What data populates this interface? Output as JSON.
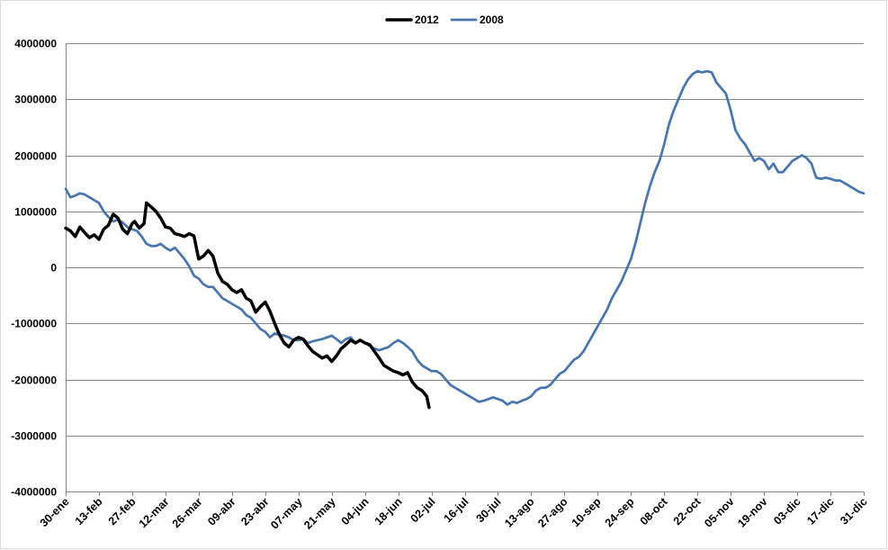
{
  "chart_data": {
    "type": "line",
    "title": "",
    "xlabel": "",
    "ylabel": "",
    "ylim": [
      -4000000,
      4000000
    ],
    "y_ticks": [
      "4000000",
      "3000000",
      "2000000",
      "1000000",
      "0",
      "-1000000",
      "-2000000",
      "-3000000",
      "-4000000"
    ],
    "x_range": [
      "30-ene",
      "31-dic"
    ],
    "x_ticks": [
      "30-ene",
      "13-feb",
      "27-feb",
      "12-mar",
      "26-mar",
      "09-abr",
      "23-abr",
      "07-may",
      "21-may",
      "04-jun",
      "18-jun",
      "02-jul",
      "16-jul",
      "30-jul",
      "13-ago",
      "27-ago",
      "10-sep",
      "24-sep",
      "08-oct",
      "22-oct",
      "05-nov",
      "19-nov",
      "03-dic",
      "17-dic",
      "31-dic"
    ],
    "grid": "horizontal",
    "legend": "top",
    "series": [
      {
        "name": "2012",
        "color": "#000000",
        "points": [
          [
            "30-ene",
            700000
          ],
          [
            "01-feb",
            650000
          ],
          [
            "03-feb",
            550000
          ],
          [
            "05-feb",
            720000
          ],
          [
            "07-feb",
            620000
          ],
          [
            "09-feb",
            530000
          ],
          [
            "11-feb",
            580000
          ],
          [
            "13-feb",
            500000
          ],
          [
            "15-feb",
            680000
          ],
          [
            "17-feb",
            750000
          ],
          [
            "19-feb",
            950000
          ],
          [
            "21-feb",
            880000
          ],
          [
            "23-feb",
            680000
          ],
          [
            "25-feb",
            600000
          ],
          [
            "27-feb",
            780000
          ],
          [
            "28-feb",
            820000
          ],
          [
            "01-mar",
            700000
          ],
          [
            "03-mar",
            780000
          ],
          [
            "04-mar",
            1150000
          ],
          [
            "06-mar",
            1080000
          ],
          [
            "08-mar",
            1000000
          ],
          [
            "10-mar",
            880000
          ],
          [
            "12-mar",
            720000
          ],
          [
            "14-mar",
            700000
          ],
          [
            "16-mar",
            600000
          ],
          [
            "18-mar",
            580000
          ],
          [
            "20-mar",
            550000
          ],
          [
            "22-mar",
            600000
          ],
          [
            "24-mar",
            560000
          ],
          [
            "26-mar",
            150000
          ],
          [
            "28-mar",
            200000
          ],
          [
            "30-mar",
            300000
          ],
          [
            "01-abr",
            200000
          ],
          [
            "03-abr",
            -100000
          ],
          [
            "05-abr",
            -250000
          ],
          [
            "07-abr",
            -300000
          ],
          [
            "09-abr",
            -400000
          ],
          [
            "11-abr",
            -450000
          ],
          [
            "13-abr",
            -400000
          ],
          [
            "15-abr",
            -550000
          ],
          [
            "17-abr",
            -600000
          ],
          [
            "19-abr",
            -800000
          ],
          [
            "21-abr",
            -700000
          ],
          [
            "23-abr",
            -620000
          ],
          [
            "25-abr",
            -780000
          ],
          [
            "27-abr",
            -1000000
          ],
          [
            "29-abr",
            -1200000
          ],
          [
            "01-may",
            -1350000
          ],
          [
            "03-may",
            -1420000
          ],
          [
            "05-may",
            -1300000
          ],
          [
            "07-may",
            -1250000
          ],
          [
            "09-may",
            -1280000
          ],
          [
            "11-may",
            -1400000
          ],
          [
            "13-may",
            -1500000
          ],
          [
            "15-may",
            -1560000
          ],
          [
            "17-may",
            -1620000
          ],
          [
            "19-may",
            -1580000
          ],
          [
            "21-may",
            -1680000
          ],
          [
            "23-may",
            -1580000
          ],
          [
            "25-may",
            -1450000
          ],
          [
            "27-may",
            -1380000
          ],
          [
            "29-may",
            -1300000
          ],
          [
            "31-may",
            -1350000
          ],
          [
            "02-jun",
            -1300000
          ],
          [
            "04-jun",
            -1350000
          ],
          [
            "06-jun",
            -1380000
          ],
          [
            "08-jun",
            -1500000
          ],
          [
            "10-jun",
            -1620000
          ],
          [
            "12-jun",
            -1750000
          ],
          [
            "14-jun",
            -1800000
          ],
          [
            "16-jun",
            -1850000
          ],
          [
            "18-jun",
            -1880000
          ],
          [
            "20-jun",
            -1920000
          ],
          [
            "22-jun",
            -1880000
          ],
          [
            "24-jun",
            -2050000
          ],
          [
            "26-jun",
            -2150000
          ],
          [
            "28-jun",
            -2200000
          ],
          [
            "30-jun",
            -2300000
          ],
          [
            "01-jul",
            -2500000
          ]
        ]
      },
      {
        "name": "2008",
        "color": "#4a76ae",
        "points": [
          [
            "30-ene",
            1400000
          ],
          [
            "01-feb",
            1250000
          ],
          [
            "03-feb",
            1280000
          ],
          [
            "05-feb",
            1320000
          ],
          [
            "07-feb",
            1300000
          ],
          [
            "09-feb",
            1250000
          ],
          [
            "11-feb",
            1200000
          ],
          [
            "13-feb",
            1150000
          ],
          [
            "15-feb",
            1000000
          ],
          [
            "17-feb",
            900000
          ],
          [
            "19-feb",
            820000
          ],
          [
            "21-feb",
            850000
          ],
          [
            "23-feb",
            800000
          ],
          [
            "25-feb",
            720000
          ],
          [
            "27-feb",
            680000
          ],
          [
            "29-feb",
            650000
          ],
          [
            "02-mar",
            550000
          ],
          [
            "04-mar",
            420000
          ],
          [
            "06-mar",
            380000
          ],
          [
            "08-mar",
            380000
          ],
          [
            "10-mar",
            420000
          ],
          [
            "12-mar",
            350000
          ],
          [
            "14-mar",
            300000
          ],
          [
            "16-mar",
            350000
          ],
          [
            "18-mar",
            250000
          ],
          [
            "20-mar",
            150000
          ],
          [
            "22-mar",
            20000
          ],
          [
            "24-mar",
            -150000
          ],
          [
            "26-mar",
            -200000
          ],
          [
            "28-mar",
            -300000
          ],
          [
            "30-mar",
            -350000
          ],
          [
            "01-abr",
            -350000
          ],
          [
            "03-abr",
            -450000
          ],
          [
            "05-abr",
            -550000
          ],
          [
            "07-abr",
            -600000
          ],
          [
            "09-abr",
            -650000
          ],
          [
            "11-abr",
            -700000
          ],
          [
            "13-abr",
            -750000
          ],
          [
            "15-abr",
            -850000
          ],
          [
            "17-abr",
            -900000
          ],
          [
            "19-abr",
            -1000000
          ],
          [
            "21-abr",
            -1100000
          ],
          [
            "23-abr",
            -1150000
          ],
          [
            "25-abr",
            -1250000
          ],
          [
            "27-abr",
            -1180000
          ],
          [
            "29-abr",
            -1200000
          ],
          [
            "01-may",
            -1220000
          ],
          [
            "03-may",
            -1250000
          ],
          [
            "05-may",
            -1300000
          ],
          [
            "07-may",
            -1300000
          ],
          [
            "09-may",
            -1280000
          ],
          [
            "11-may",
            -1350000
          ],
          [
            "13-may",
            -1320000
          ],
          [
            "15-may",
            -1300000
          ],
          [
            "17-may",
            -1280000
          ],
          [
            "19-may",
            -1250000
          ],
          [
            "21-may",
            -1220000
          ],
          [
            "23-may",
            -1280000
          ],
          [
            "25-may",
            -1350000
          ],
          [
            "27-may",
            -1280000
          ],
          [
            "29-may",
            -1250000
          ],
          [
            "31-may",
            -1350000
          ],
          [
            "02-jun",
            -1300000
          ],
          [
            "04-jun",
            -1350000
          ],
          [
            "06-jun",
            -1400000
          ],
          [
            "08-jun",
            -1450000
          ],
          [
            "10-jun",
            -1480000
          ],
          [
            "12-jun",
            -1450000
          ],
          [
            "14-jun",
            -1420000
          ],
          [
            "16-jun",
            -1350000
          ],
          [
            "18-jun",
            -1300000
          ],
          [
            "20-jun",
            -1350000
          ],
          [
            "22-jun",
            -1420000
          ],
          [
            "24-jun",
            -1500000
          ],
          [
            "26-jun",
            -1650000
          ],
          [
            "28-jun",
            -1750000
          ],
          [
            "30-jun",
            -1800000
          ],
          [
            "02-jul",
            -1850000
          ],
          [
            "04-jul",
            -1850000
          ],
          [
            "06-jul",
            -1900000
          ],
          [
            "08-jul",
            -2000000
          ],
          [
            "10-jul",
            -2100000
          ],
          [
            "12-jul",
            -2150000
          ],
          [
            "14-jul",
            -2200000
          ],
          [
            "16-jul",
            -2250000
          ],
          [
            "18-jul",
            -2300000
          ],
          [
            "20-jul",
            -2350000
          ],
          [
            "22-jul",
            -2400000
          ],
          [
            "24-jul",
            -2380000
          ],
          [
            "26-jul",
            -2350000
          ],
          [
            "28-jul",
            -2320000
          ],
          [
            "30-jul",
            -2350000
          ],
          [
            "01-ago",
            -2380000
          ],
          [
            "03-ago",
            -2450000
          ],
          [
            "05-ago",
            -2400000
          ],
          [
            "07-ago",
            -2420000
          ],
          [
            "09-ago",
            -2380000
          ],
          [
            "11-ago",
            -2350000
          ],
          [
            "13-ago",
            -2300000
          ],
          [
            "15-ago",
            -2200000
          ],
          [
            "17-ago",
            -2150000
          ],
          [
            "19-ago",
            -2150000
          ],
          [
            "21-ago",
            -2100000
          ],
          [
            "23-ago",
            -2000000
          ],
          [
            "25-ago",
            -1900000
          ],
          [
            "27-ago",
            -1850000
          ],
          [
            "29-ago",
            -1750000
          ],
          [
            "31-ago",
            -1650000
          ],
          [
            "02-sep",
            -1600000
          ],
          [
            "04-sep",
            -1500000
          ],
          [
            "06-sep",
            -1350000
          ],
          [
            "08-sep",
            -1200000
          ],
          [
            "10-sep",
            -1050000
          ],
          [
            "12-sep",
            -900000
          ],
          [
            "14-sep",
            -750000
          ],
          [
            "16-sep",
            -550000
          ],
          [
            "18-sep",
            -400000
          ],
          [
            "20-sep",
            -250000
          ],
          [
            "22-sep",
            -50000
          ],
          [
            "24-sep",
            150000
          ],
          [
            "26-sep",
            450000
          ],
          [
            "28-sep",
            800000
          ],
          [
            "30-sep",
            1150000
          ],
          [
            "02-oct",
            1450000
          ],
          [
            "04-oct",
            1700000
          ],
          [
            "06-oct",
            1900000
          ],
          [
            "08-oct",
            2200000
          ],
          [
            "10-oct",
            2550000
          ],
          [
            "12-oct",
            2800000
          ],
          [
            "14-oct",
            3000000
          ],
          [
            "16-oct",
            3200000
          ],
          [
            "18-oct",
            3350000
          ],
          [
            "20-oct",
            3450000
          ],
          [
            "22-oct",
            3500000
          ],
          [
            "24-oct",
            3480000
          ],
          [
            "26-oct",
            3500000
          ],
          [
            "28-oct",
            3480000
          ],
          [
            "30-oct",
            3300000
          ],
          [
            "01-nov",
            3200000
          ],
          [
            "03-nov",
            3100000
          ],
          [
            "05-nov",
            2800000
          ],
          [
            "07-nov",
            2450000
          ],
          [
            "09-nov",
            2300000
          ],
          [
            "11-nov",
            2200000
          ],
          [
            "13-nov",
            2050000
          ],
          [
            "15-nov",
            1900000
          ],
          [
            "17-nov",
            1950000
          ],
          [
            "19-nov",
            1900000
          ],
          [
            "21-nov",
            1750000
          ],
          [
            "23-nov",
            1850000
          ],
          [
            "25-nov",
            1700000
          ],
          [
            "27-nov",
            1700000
          ],
          [
            "29-nov",
            1800000
          ],
          [
            "01-dic",
            1900000
          ],
          [
            "03-dic",
            1950000
          ],
          [
            "05-dic",
            2000000
          ],
          [
            "07-dic",
            1950000
          ],
          [
            "09-dic",
            1850000
          ],
          [
            "11-dic",
            1600000
          ],
          [
            "13-dic",
            1580000
          ],
          [
            "15-dic",
            1600000
          ],
          [
            "17-dic",
            1580000
          ],
          [
            "19-dic",
            1550000
          ],
          [
            "21-dic",
            1550000
          ],
          [
            "23-dic",
            1500000
          ],
          [
            "25-dic",
            1450000
          ],
          [
            "27-dic",
            1400000
          ],
          [
            "29-dic",
            1350000
          ],
          [
            "31-dic",
            1320000
          ]
        ]
      }
    ]
  }
}
